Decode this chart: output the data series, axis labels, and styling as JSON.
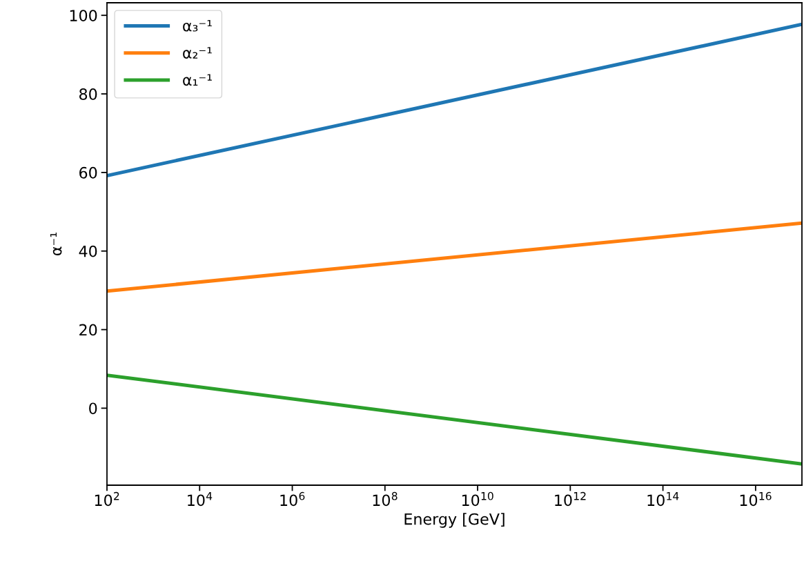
{
  "chart_data": {
    "type": "line",
    "xlabel": "Energy [GeV]",
    "ylabel": "α⁻¹",
    "log": "x",
    "x": [
      100,
      1e+17
    ],
    "series": [
      {
        "name": "α₃⁻¹",
        "color": "#1f77b4",
        "values": [
          59.2,
          97.7
        ]
      },
      {
        "name": "α₂⁻¹",
        "color": "#ff7f0e",
        "values": [
          29.8,
          47.1
        ]
      },
      {
        "name": "α₁⁻¹",
        "color": "#2ca02c",
        "values": [
          8.4,
          -14.2
        ]
      }
    ],
    "xlim": [
      100,
      1e+17
    ],
    "xticks": [
      {
        "value": 100.0,
        "label": "10$^{2}$"
      },
      {
        "value": 10000.0,
        "label": "10$^{4}$"
      },
      {
        "value": 1000000.0,
        "label": "10$^{6}$"
      },
      {
        "value": 100000000.0,
        "label": "10$^{8}$"
      },
      {
        "value": 10000000000.0,
        "label": "10$^{10}$"
      },
      {
        "value": 1000000000000.0,
        "label": "10$^{12}$"
      },
      {
        "value": 100000000000000.0,
        "label": "10$^{14}$"
      },
      {
        "value": 1e+16,
        "label": "10$^{16}$"
      }
    ],
    "ylim": [
      -19.6,
      103.2
    ],
    "yticks": [
      0,
      20,
      40,
      60,
      80,
      100
    ],
    "grid": false,
    "legend": "top left",
    "marker": "none",
    "line_style": "solid"
  }
}
